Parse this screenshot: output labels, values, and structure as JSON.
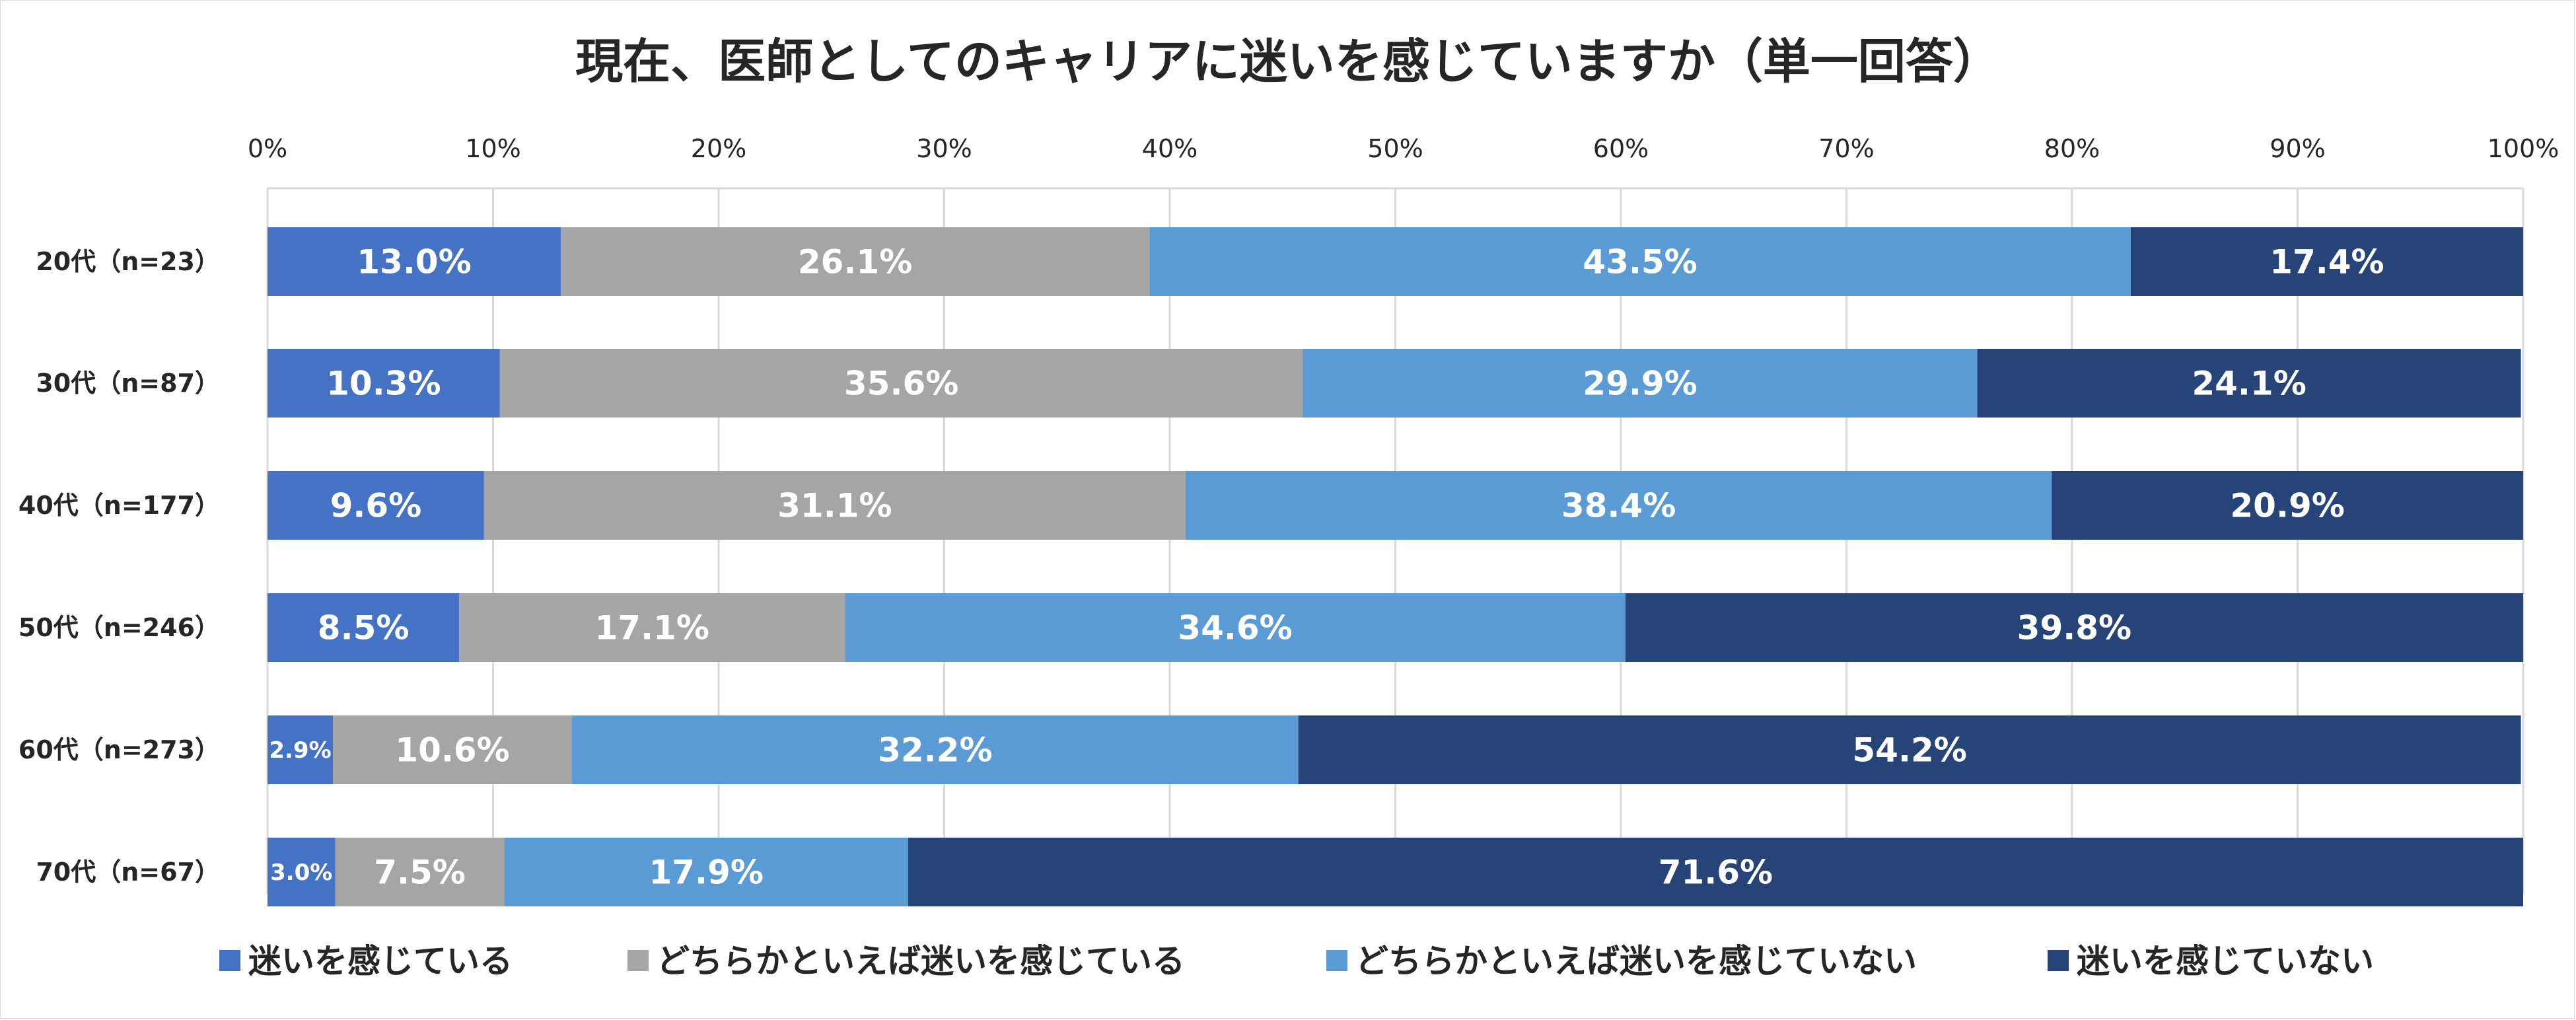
{
  "chart_data": {
    "type": "bar",
    "orientation": "horizontal",
    "stacked": "percent",
    "title": "現在、医師としてのキャリアに迷いを感じていますか（単一回答）",
    "xlim": [
      0,
      100
    ],
    "x_ticks": [
      "0%",
      "10%",
      "20%",
      "30%",
      "40%",
      "50%",
      "60%",
      "70%",
      "80%",
      "90%",
      "100%"
    ],
    "categories": [
      "20代（n=23）",
      "30代（n=87）",
      "40代（n=177）",
      "50代（n=246）",
      "60代（n=273）",
      "70代（n=67）"
    ],
    "series": [
      {
        "name": "迷いを感じている",
        "color": "#4472c4",
        "values": [
          13.0,
          10.3,
          9.6,
          8.5,
          2.9,
          3.0
        ],
        "labels": [
          "13.0%",
          "10.3%",
          "9.6%",
          "8.5%",
          "2.9%",
          "3.0%"
        ]
      },
      {
        "name": "どちらかといえば迷いを感じている",
        "color": "#a5a5a5",
        "values": [
          26.1,
          35.6,
          31.1,
          17.1,
          10.6,
          7.5
        ],
        "labels": [
          "26.1%",
          "35.6%",
          "31.1%",
          "17.1%",
          "10.6%",
          "7.5%"
        ]
      },
      {
        "name": "どちらかといえば迷いを感じていない",
        "color": "#5b9bd5",
        "values": [
          43.5,
          29.9,
          38.4,
          34.6,
          32.2,
          17.9
        ],
        "labels": [
          "43.5%",
          "29.9%",
          "38.4%",
          "34.6%",
          "32.2%",
          "17.9%"
        ]
      },
      {
        "name": "迷いを感じていない",
        "color": "#264478",
        "values": [
          17.4,
          24.1,
          20.9,
          39.8,
          54.2,
          71.6
        ],
        "labels": [
          "17.4%",
          "24.1%",
          "20.9%",
          "39.8%",
          "54.2%",
          "71.6%"
        ]
      }
    ],
    "grid": true,
    "legend_position": "bottom"
  }
}
